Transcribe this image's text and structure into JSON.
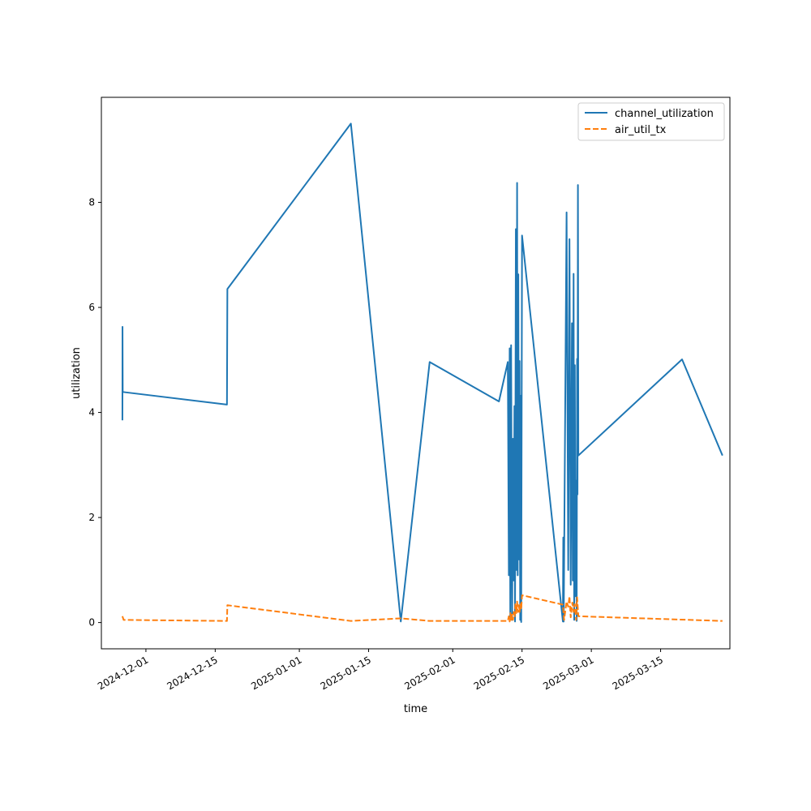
{
  "chart_data": {
    "type": "line",
    "xlabel": "time",
    "ylabel": "utilization",
    "x_axis_type": "date",
    "xlim": [
      "2024-11-22",
      "2025-03-29"
    ],
    "ylim": [
      -0.5,
      10.0
    ],
    "x_ticks": [
      "2024-12-01",
      "2024-12-15",
      "2025-01-01",
      "2025-01-15",
      "2025-02-01",
      "2025-02-15",
      "2025-03-01",
      "2025-03-15"
    ],
    "y_ticks": [
      0,
      2,
      4,
      6,
      8
    ],
    "grid": false,
    "legend_position": "top-right",
    "series": [
      {
        "name": "channel_utilization",
        "color": "#1f77b4",
        "dash": "solid",
        "points": [
          [
            "2024-11-26T06:00",
            3.85
          ],
          [
            "2024-11-26T06:30",
            5.63
          ],
          [
            "2024-11-26T07:30",
            4.39
          ],
          [
            "2024-12-17T09:00",
            4.15
          ],
          [
            "2024-12-17T11:00",
            6.35
          ],
          [
            "2025-01-11T10:00",
            9.5
          ],
          [
            "2025-01-21T12:00",
            0.02
          ],
          [
            "2025-01-27T08:00",
            4.96
          ],
          [
            "2025-02-10T08:00",
            4.21
          ],
          [
            "2025-02-12T03:00",
            4.96
          ],
          [
            "2025-02-12T08:00",
            0.9
          ],
          [
            "2025-02-12T12:00",
            5.22
          ],
          [
            "2025-02-12T15:00",
            0.1
          ],
          [
            "2025-02-12T19:00",
            5.28
          ],
          [
            "2025-02-13T00:00",
            0.05
          ],
          [
            "2025-02-13T04:00",
            3.5
          ],
          [
            "2025-02-13T08:00",
            0.8
          ],
          [
            "2025-02-13T11:00",
            4.12
          ],
          [
            "2025-02-13T14:00",
            0.02
          ],
          [
            "2025-02-13T18:00",
            7.49
          ],
          [
            "2025-02-13T21:00",
            1.0
          ],
          [
            "2025-02-14T00:00",
            8.37
          ],
          [
            "2025-02-14T03:00",
            0.9
          ],
          [
            "2025-02-14T06:00",
            6.63
          ],
          [
            "2025-02-14T09:00",
            1.2
          ],
          [
            "2025-02-14T12:00",
            4.98
          ],
          [
            "2025-02-14T15:00",
            0.05
          ],
          [
            "2025-02-14T18:00",
            4.32
          ],
          [
            "2025-02-14T20:00",
            0.01
          ],
          [
            "2025-02-15T00:00",
            7.37
          ],
          [
            "2025-02-23T06:00",
            0.02
          ],
          [
            "2025-02-23T08:00",
            1.62
          ],
          [
            "2025-02-23T10:00",
            0.02
          ],
          [
            "2025-02-24T00:00",
            7.81
          ],
          [
            "2025-02-24T08:00",
            1.0
          ],
          [
            "2025-02-24T14:00",
            7.3
          ],
          [
            "2025-02-24T20:00",
            0.72
          ],
          [
            "2025-02-25T02:00",
            5.7
          ],
          [
            "2025-02-25T06:00",
            0.8
          ],
          [
            "2025-02-25T10:00",
            6.64
          ],
          [
            "2025-02-25T13:00",
            0.05
          ],
          [
            "2025-02-25T16:00",
            4.9
          ],
          [
            "2025-02-25T19:00",
            0.5
          ],
          [
            "2025-02-25T22:00",
            2.7
          ],
          [
            "2025-02-26T01:00",
            0.03
          ],
          [
            "2025-02-26T03:00",
            5.02
          ],
          [
            "2025-02-26T05:00",
            2.44
          ],
          [
            "2025-02-26T07:00",
            8.33
          ],
          [
            "2025-02-26T09:00",
            3.18
          ],
          [
            "2025-03-19T08:00",
            5.01
          ],
          [
            "2025-03-27T12:00",
            3.18
          ]
        ]
      },
      {
        "name": "air_util_tx",
        "color": "#ff7f0e",
        "dash": "dashed",
        "points": [
          [
            "2024-11-26T06:00",
            0.12
          ],
          [
            "2024-11-26T12:00",
            0.05
          ],
          [
            "2024-12-17T09:00",
            0.03
          ],
          [
            "2024-12-17T11:00",
            0.33
          ],
          [
            "2025-01-11T10:00",
            0.03
          ],
          [
            "2025-01-21T12:00",
            0.08
          ],
          [
            "2025-01-27T08:00",
            0.03
          ],
          [
            "2025-02-12T03:00",
            0.03
          ],
          [
            "2025-02-12T08:00",
            0.12
          ],
          [
            "2025-02-12T12:00",
            0.02
          ],
          [
            "2025-02-12T16:00",
            0.18
          ],
          [
            "2025-02-12T20:00",
            0.05
          ],
          [
            "2025-02-13T00:00",
            0.15
          ],
          [
            "2025-02-13T04:00",
            0.05
          ],
          [
            "2025-02-13T08:00",
            0.2
          ],
          [
            "2025-02-13T12:00",
            0.1
          ],
          [
            "2025-02-13T16:00",
            0.35
          ],
          [
            "2025-02-13T20:00",
            0.18
          ],
          [
            "2025-02-14T00:00",
            0.4
          ],
          [
            "2025-02-14T04:00",
            0.2
          ],
          [
            "2025-02-14T08:00",
            0.33
          ],
          [
            "2025-02-14T12:00",
            0.2
          ],
          [
            "2025-02-14T16:00",
            0.35
          ],
          [
            "2025-02-14T20:00",
            0.25
          ],
          [
            "2025-02-15T00:00",
            0.52
          ],
          [
            "2025-02-23T06:00",
            0.34
          ],
          [
            "2025-02-23T12:00",
            0.05
          ],
          [
            "2025-02-24T00:00",
            0.4
          ],
          [
            "2025-02-24T08:00",
            0.3
          ],
          [
            "2025-02-24T14:00",
            0.5
          ],
          [
            "2025-02-24T20:00",
            0.1
          ],
          [
            "2025-02-25T04:00",
            0.38
          ],
          [
            "2025-02-25T10:00",
            0.2
          ],
          [
            "2025-02-25T16:00",
            0.35
          ],
          [
            "2025-02-25T22:00",
            0.05
          ],
          [
            "2025-02-26T03:00",
            0.48
          ],
          [
            "2025-02-26T09:00",
            0.12
          ],
          [
            "2025-03-27T12:00",
            0.03
          ]
        ]
      }
    ]
  }
}
